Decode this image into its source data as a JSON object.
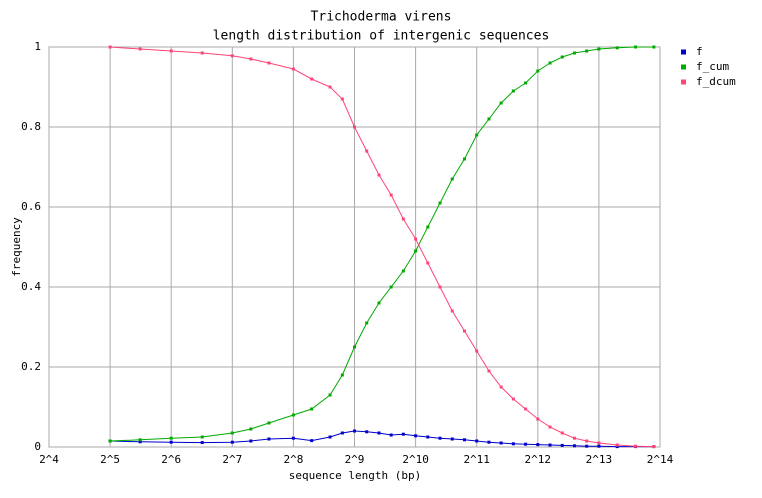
{
  "chart_data": {
    "type": "line",
    "title": "Trichoderma virens",
    "subtitle": "length distribution of intergenic sequences",
    "x_label": "sequence length (bp)",
    "y_label": "frequency",
    "x_log_base": 2,
    "xlim": [
      16,
      16384
    ],
    "xticks": [
      {
        "value": 16,
        "label": "2^4"
      },
      {
        "value": 32,
        "label": "2^5"
      },
      {
        "value": 64,
        "label": "2^6"
      },
      {
        "value": 128,
        "label": "2^7"
      },
      {
        "value": 256,
        "label": "2^8"
      },
      {
        "value": 512,
        "label": "2^9"
      },
      {
        "value": 1024,
        "label": "2^10"
      },
      {
        "value": 2048,
        "label": "2^11"
      },
      {
        "value": 4096,
        "label": "2^12"
      },
      {
        "value": 8192,
        "label": "2^13"
      },
      {
        "value": 16384,
        "label": "2^14"
      }
    ],
    "ylim": [
      0,
      1
    ],
    "yticks": [
      0,
      0.2,
      0.4,
      0.6,
      0.8,
      1
    ],
    "grid": true,
    "legend": "right",
    "x": [
      32,
      45,
      64,
      91,
      128,
      158,
      194,
      256,
      315,
      388,
      446,
      512,
      588,
      676,
      776,
      891,
      1024,
      1176,
      1351,
      1552,
      1783,
      2048,
      2353,
      2702,
      3104,
      3566,
      4096,
      4705,
      5405,
      6208,
      7132,
      8192,
      10086,
      12417,
      15287
    ],
    "series": [
      {
        "name": "f",
        "color": "#0000cc",
        "values": [
          0.015,
          0.013,
          0.012,
          0.011,
          0.012,
          0.015,
          0.02,
          0.022,
          0.016,
          0.025,
          0.035,
          0.04,
          0.038,
          0.035,
          0.03,
          0.032,
          0.028,
          0.025,
          0.022,
          0.02,
          0.018,
          0.015,
          0.012,
          0.01,
          0.008,
          0.007,
          0.006,
          0.005,
          0.004,
          0.003,
          0.002,
          0.002,
          0.001,
          0.001,
          0.001
        ]
      },
      {
        "name": "f_cum",
        "color": "#00aa00",
        "values": [
          0.015,
          0.018,
          0.022,
          0.025,
          0.035,
          0.045,
          0.06,
          0.08,
          0.095,
          0.13,
          0.18,
          0.25,
          0.31,
          0.36,
          0.4,
          0.44,
          0.49,
          0.55,
          0.61,
          0.67,
          0.72,
          0.78,
          0.82,
          0.86,
          0.89,
          0.91,
          0.94,
          0.96,
          0.975,
          0.985,
          0.99,
          0.995,
          0.998,
          1,
          1
        ]
      },
      {
        "name": "f_dcum",
        "color": "#ff4477",
        "values": [
          1,
          0.995,
          0.99,
          0.985,
          0.978,
          0.97,
          0.96,
          0.945,
          0.92,
          0.9,
          0.87,
          0.8,
          0.74,
          0.68,
          0.63,
          0.57,
          0.52,
          0.46,
          0.4,
          0.34,
          0.29,
          0.24,
          0.19,
          0.15,
          0.12,
          0.095,
          0.07,
          0.05,
          0.035,
          0.022,
          0.015,
          0.01,
          0.005,
          0.002,
          0.001
        ]
      }
    ]
  }
}
